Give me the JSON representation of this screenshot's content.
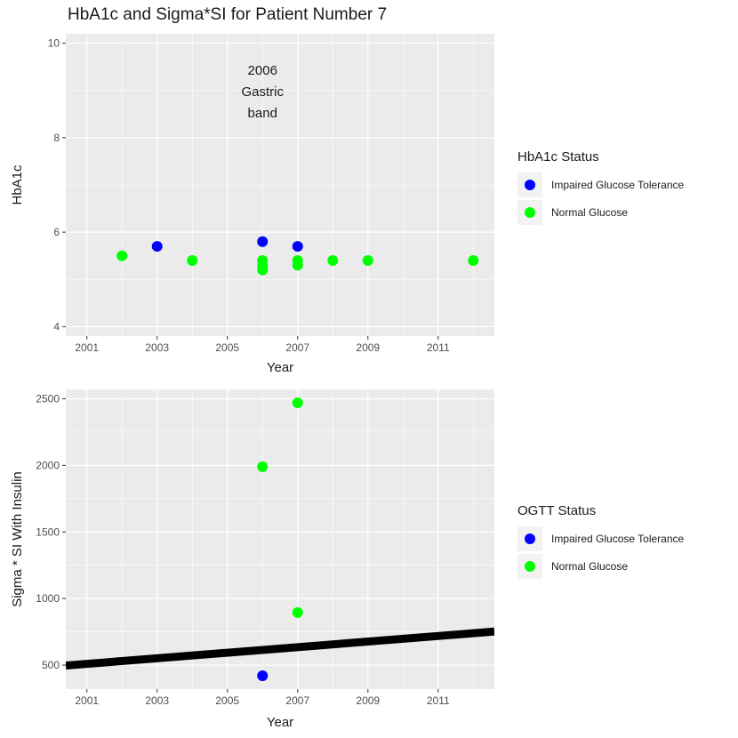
{
  "title": "HbA1c and Sigma*SI for Patient Number 7",
  "colors": {
    "impaired": "#0000ff",
    "normal": "#00ff00",
    "panel_bg": "#ebebeb",
    "grid": "#ffffff",
    "line": "#000000"
  },
  "chart_data": [
    {
      "type": "scatter",
      "title": "",
      "xlabel": "Year",
      "ylabel": "HbA1c",
      "xlim": [
        2000.4,
        2012.6
      ],
      "ylim": [
        3.8,
        10.2
      ],
      "x_ticks": [
        2001,
        2003,
        2005,
        2007,
        2009,
        2011
      ],
      "y_ticks": [
        4,
        6,
        8,
        10
      ],
      "grid": true,
      "legend": {
        "title": "HbA1c Status",
        "position": "right",
        "entries": [
          {
            "label": "Impaired Glucose Tolerance",
            "color": "#0000ff"
          },
          {
            "label": "Normal Glucose",
            "color": "#00ff00"
          }
        ]
      },
      "annotation": {
        "lines": [
          "2006",
          "Gastric",
          "band"
        ],
        "x": 2006,
        "y": 9.0
      },
      "series": [
        {
          "name": "Impaired Glucose Tolerance",
          "color": "#0000ff",
          "points": [
            [
              2003,
              5.7
            ],
            [
              2006,
              5.8
            ],
            [
              2007,
              5.7
            ]
          ]
        },
        {
          "name": "Normal Glucose",
          "color": "#00ff00",
          "points": [
            [
              2002,
              5.5
            ],
            [
              2004,
              5.4
            ],
            [
              2006,
              5.4
            ],
            [
              2006,
              5.3
            ],
            [
              2006,
              5.2
            ],
            [
              2007,
              5.4
            ],
            [
              2007,
              5.3
            ],
            [
              2008,
              5.4
            ],
            [
              2009,
              5.4
            ],
            [
              2012,
              5.4
            ]
          ]
        }
      ]
    },
    {
      "type": "scatter",
      "title": "",
      "xlabel": "Year",
      "ylabel": "Sigma * SI With Insulin",
      "xlim": [
        2000.4,
        2012.6
      ],
      "ylim": [
        320,
        2570
      ],
      "x_ticks": [
        2001,
        2003,
        2005,
        2007,
        2009,
        2011
      ],
      "y_ticks": [
        500,
        1000,
        1500,
        2000,
        2500
      ],
      "grid": true,
      "legend": {
        "title": "OGTT Status",
        "position": "right",
        "entries": [
          {
            "label": "Impaired Glucose Tolerance",
            "color": "#0000ff"
          },
          {
            "label": "Normal Glucose",
            "color": "#00ff00"
          }
        ]
      },
      "reference_line": {
        "from": [
          2000.4,
          497
        ],
        "to": [
          2012.6,
          752
        ],
        "color": "#000000"
      },
      "series": [
        {
          "name": "Impaired Glucose Tolerance",
          "color": "#0000ff",
          "points": [
            [
              2006,
              420
            ]
          ]
        },
        {
          "name": "Normal Glucose",
          "color": "#00ff00",
          "points": [
            [
              2006,
              1990
            ],
            [
              2007,
              2470
            ],
            [
              2007,
              895
            ]
          ]
        }
      ]
    }
  ]
}
